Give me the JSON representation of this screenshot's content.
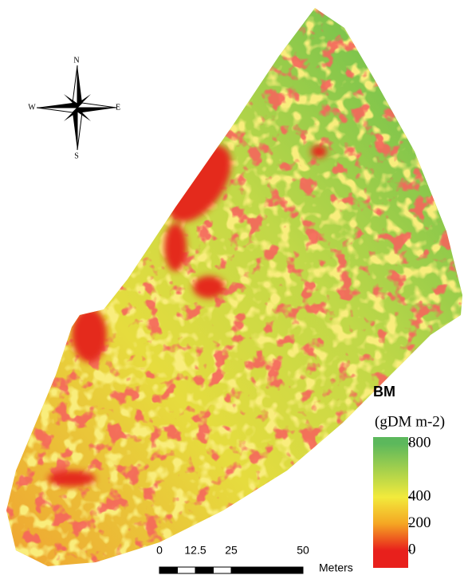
{
  "compass": {
    "n": "N",
    "s": "S",
    "e": "E",
    "w": "W"
  },
  "legend": {
    "title": "BM",
    "unit": "(gDM m-2)",
    "lim": [
      -130,
      850
    ],
    "ticks": [
      800,
      400,
      200,
      0
    ],
    "stops": [
      {
        "value": 0,
        "color": "#e8201c"
      },
      {
        "value": 200,
        "color": "#f5a623"
      },
      {
        "value": 400,
        "color": "#f2ea3c"
      },
      {
        "value": 800,
        "color": "#5cb85c"
      }
    ]
  },
  "scale_bar": {
    "ticks": [
      0,
      12.5,
      25,
      50
    ],
    "unit": "Meters",
    "lim": [
      0,
      50
    ]
  }
}
